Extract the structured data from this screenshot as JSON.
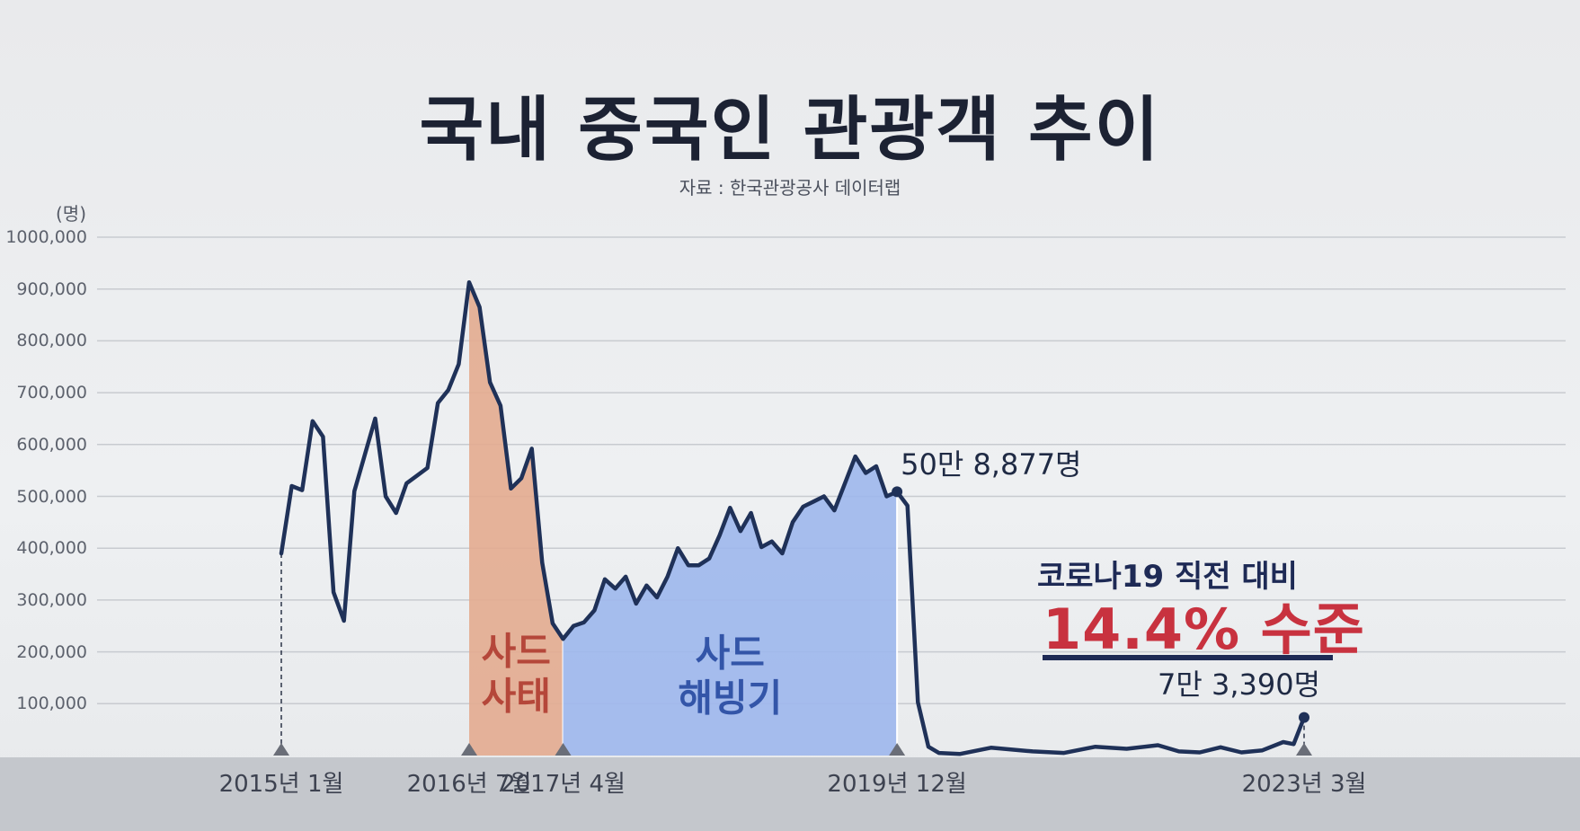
{
  "title": "국내 중국인 관광객 추이",
  "source": "자료 : 한국관광공사 데이터랩",
  "unit_label": "(명)",
  "colors": {
    "line": "#1f3158",
    "sad_region": "#e3ab8f",
    "thaw_region": "#9db7ec",
    "highlight_red": "#c8323f",
    "highlight_navy": "#1e2a55"
  },
  "annotations": {
    "region_sad": "사드\n사태",
    "region_thaw": "사드\n해빙기",
    "peak_label": "50만 8,877명",
    "latest_label": "7만 3,390명",
    "note_line1": "코로나19 직전 대비",
    "note_line2": "14.4% 수준"
  },
  "chart_data": {
    "type": "area",
    "title": "국내 중국인 관광객 추이",
    "ylabel": "(명)",
    "ylim": [
      0,
      1000000
    ],
    "yticks": [
      100000,
      200000,
      300000,
      400000,
      500000,
      600000,
      700000,
      800000,
      900000,
      1000000
    ],
    "ytick_labels": [
      "100,000",
      "200,000",
      "300,000",
      "400,000",
      "500,000",
      "600,000",
      "700,000",
      "800,000",
      "900,000",
      "1000,000"
    ],
    "x_range": [
      "2015-01",
      "2023-03"
    ],
    "xticks": [
      "2015-01",
      "2016-07",
      "2017-04",
      "2019-12",
      "2023-03"
    ],
    "xtick_labels": [
      "2015년 1월",
      "2016년 7월",
      "2017년 4월",
      "2019년 12월",
      "2023년 3월"
    ],
    "grid": true,
    "shaded_regions": [
      {
        "label": "사드 사태",
        "start": "2016-07",
        "end": "2017-04"
      },
      {
        "label": "사드 해빙기",
        "start": "2017-04",
        "end": "2019-12"
      }
    ],
    "series": [
      {
        "x": [
          "2015-01",
          "2015-02",
          "2015-03",
          "2015-04",
          "2015-05",
          "2015-06",
          "2015-07",
          "2015-08",
          "2015-09",
          "2015-10",
          "2015-11",
          "2015-12",
          "2016-01",
          "2016-02",
          "2016-03",
          "2016-04",
          "2016-05",
          "2016-06",
          "2016-07",
          "2016-08",
          "2016-09",
          "2016-10",
          "2016-11",
          "2016-12",
          "2017-01",
          "2017-02",
          "2017-03",
          "2017-04",
          "2017-05",
          "2017-06",
          "2017-07",
          "2017-08",
          "2017-09",
          "2017-10",
          "2017-11",
          "2017-12",
          "2018-01",
          "2018-02",
          "2018-03",
          "2018-04",
          "2018-05",
          "2018-06",
          "2018-07",
          "2018-08",
          "2018-09",
          "2018-10",
          "2018-11",
          "2018-12",
          "2019-01",
          "2019-02",
          "2019-03",
          "2019-04",
          "2019-05",
          "2019-06",
          "2019-07",
          "2019-08",
          "2019-09",
          "2019-10",
          "2019-11",
          "2019-12",
          "2020-01",
          "2020-02",
          "2020-03",
          "2020-04",
          "2020-06",
          "2020-09",
          "2021-01",
          "2021-04",
          "2021-07",
          "2021-10",
          "2022-01",
          "2022-03",
          "2022-05",
          "2022-07",
          "2022-09",
          "2022-11",
          "2023-01",
          "2023-02",
          "2023-03"
        ],
        "values": [
          390000,
          520000,
          512000,
          645000,
          615000,
          315000,
          260000,
          510000,
          580000,
          650000,
          500000,
          468000,
          525000,
          540000,
          555000,
          680000,
          705000,
          755000,
          913000,
          865000,
          720000,
          675000,
          515000,
          535000,
          592000,
          372000,
          255000,
          225000,
          250000,
          257000,
          280000,
          340000,
          322000,
          345000,
          293000,
          328000,
          305000,
          345000,
          400000,
          367000,
          367000,
          380000,
          425000,
          478000,
          433000,
          468000,
          402000,
          413000,
          390000,
          450000,
          480000,
          490000,
          500000,
          473000,
          525000,
          577000,
          545000,
          558000,
          500000,
          508877,
          482000,
          103000,
          17000,
          5000,
          3000,
          15000,
          8000,
          5000,
          17000,
          13000,
          20000,
          8000,
          6000,
          16000,
          6000,
          10000,
          26000,
          22000,
          73390
        ]
      }
    ],
    "annotations": [
      {
        "x": "2019-12",
        "y": 508877,
        "text": "50만 8,877명"
      },
      {
        "x": "2023-03",
        "y": 73390,
        "text": "7만 3,390명"
      }
    ]
  }
}
